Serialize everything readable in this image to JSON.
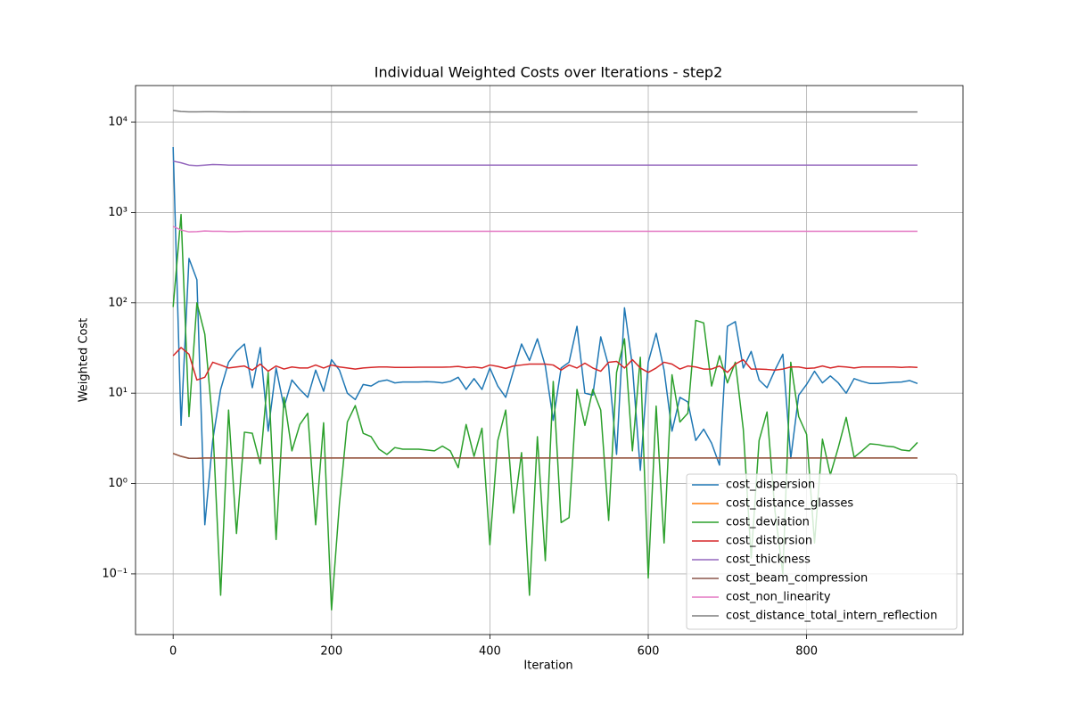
{
  "chart_data": {
    "type": "line",
    "title": "Individual Weighted Costs over Iterations - step2",
    "xlabel": "Iteration",
    "ylabel": "Weighted Cost",
    "log_y": true,
    "grid": true,
    "legend": "lower right",
    "xlim": [
      -47.5,
      997.5
    ],
    "ylim": [
      0.0213,
      25400
    ],
    "xticks": [
      0,
      200,
      400,
      600,
      800
    ],
    "yticks": [
      {
        "value": 0.1,
        "label": "10⁻¹"
      },
      {
        "value": 1,
        "label": "10⁰"
      },
      {
        "value": 10,
        "label": "10¹"
      },
      {
        "value": 100,
        "label": "10²"
      },
      {
        "value": 1000,
        "label": "10³"
      },
      {
        "value": 10000,
        "label": "10⁴"
      }
    ],
    "x": [
      0,
      10,
      20,
      30,
      40,
      50,
      60,
      70,
      80,
      90,
      100,
      110,
      120,
      130,
      140,
      150,
      160,
      170,
      180,
      190,
      200,
      210,
      220,
      230,
      240,
      250,
      260,
      270,
      280,
      290,
      300,
      310,
      320,
      330,
      340,
      350,
      360,
      370,
      380,
      390,
      400,
      410,
      420,
      430,
      440,
      450,
      460,
      470,
      480,
      490,
      500,
      510,
      520,
      530,
      540,
      550,
      560,
      570,
      580,
      590,
      600,
      610,
      620,
      630,
      640,
      650,
      660,
      670,
      680,
      690,
      700,
      710,
      720,
      730,
      740,
      750,
      760,
      770,
      780,
      790,
      800,
      810,
      820,
      830,
      840,
      850,
      860,
      870,
      880,
      890,
      900,
      910,
      920,
      930,
      940
    ],
    "series": [
      {
        "name": "cost_dispersion",
        "color": "#1f77b4",
        "values": [
          5300,
          4.4,
          310,
          180,
          0.35,
          3,
          11,
          22,
          29,
          35,
          11.5,
          32,
          3.8,
          19,
          7,
          14,
          11,
          9,
          18,
          10.5,
          23.5,
          18,
          10,
          8.5,
          12.5,
          12,
          13.5,
          14,
          13,
          13.3,
          13.3,
          13.3,
          13.4,
          13.3,
          13,
          13.5,
          15,
          11,
          14.5,
          11,
          19,
          12,
          9,
          18,
          35,
          23,
          40,
          20,
          5,
          19,
          22,
          55,
          10,
          9.5,
          42,
          20,
          2.1,
          88,
          20,
          1.4,
          22,
          46,
          18,
          3.8,
          9,
          8,
          3,
          4,
          2.8,
          1.6,
          55,
          62,
          19,
          29,
          14,
          11.5,
          18,
          27,
          1.9,
          9.5,
          12.5,
          17.5,
          13,
          15.5,
          13,
          10,
          14.5,
          13.5,
          12.8,
          12.8,
          13,
          13.2,
          13.3,
          13.8,
          12.8
        ]
      },
      {
        "name": "cost_distance_glasses",
        "color": "#ff7f0e",
        "values": [
          2.15,
          2.0,
          1.9,
          1.9,
          1.92,
          1.92,
          1.92,
          1.92,
          1.92,
          1.92,
          1.92,
          1.92,
          1.92,
          1.92,
          1.92,
          1.92,
          1.92,
          1.92,
          1.92,
          1.92,
          1.92,
          1.92,
          1.92,
          1.92,
          1.92,
          1.92,
          1.92,
          1.92,
          1.92,
          1.92,
          1.92,
          1.92,
          1.92,
          1.92,
          1.92,
          1.92,
          1.92,
          1.92,
          1.92,
          1.92,
          1.92,
          1.92,
          1.92,
          1.92,
          1.92,
          1.92,
          1.92,
          1.92,
          1.92,
          1.92,
          1.92,
          1.92,
          1.92,
          1.92,
          1.92,
          1.92,
          1.92,
          1.92,
          1.92,
          1.92,
          1.92,
          1.92,
          1.92,
          1.92,
          1.92,
          1.92,
          1.92,
          1.92,
          1.92,
          1.92,
          1.92,
          1.92,
          1.92,
          1.92,
          1.92,
          1.92,
          1.92,
          1.92,
          1.92,
          1.92,
          1.92,
          1.92,
          1.92,
          1.92,
          1.92,
          1.92,
          1.92,
          1.92,
          1.92,
          1.92,
          1.92,
          1.92,
          1.92,
          1.92,
          1.92
        ]
      },
      {
        "name": "cost_deviation",
        "color": "#2ca02c",
        "values": [
          90,
          950,
          5.5,
          100,
          45,
          4.5,
          0.058,
          6.5,
          0.28,
          3.7,
          3.6,
          1.65,
          17,
          0.24,
          9,
          2.3,
          4.5,
          6,
          0.35,
          4.7,
          0.04,
          0.6,
          4.8,
          7.3,
          3.6,
          3.3,
          2.4,
          2.1,
          2.5,
          2.4,
          2.4,
          2.4,
          2.35,
          2.3,
          2.6,
          2.3,
          1.5,
          4.5,
          2,
          4.1,
          0.21,
          3,
          6.5,
          0.47,
          2.2,
          0.058,
          3.3,
          0.14,
          13.5,
          0.37,
          0.42,
          11,
          4.4,
          11,
          6.5,
          0.39,
          17,
          40,
          2.3,
          25,
          0.09,
          7.2,
          0.22,
          16,
          4.8,
          6,
          64,
          60,
          12,
          26,
          13,
          22,
          4,
          0.15,
          3,
          6.2,
          0.5,
          0.1,
          22,
          5.5,
          3.5,
          0.22,
          3.1,
          1.25,
          2.5,
          5.4,
          1.95,
          2.3,
          2.75,
          2.7,
          2.6,
          2.55,
          2.35,
          2.3,
          2.85
        ]
      },
      {
        "name": "cost_distorsion",
        "color": "#d62728",
        "values": [
          26,
          32,
          27,
          14,
          15,
          22,
          20.5,
          19,
          19.5,
          20,
          18,
          21,
          17.5,
          20,
          18.5,
          19.5,
          19,
          19,
          20.5,
          19,
          20.5,
          19.5,
          19,
          18.5,
          19,
          19.3,
          19.5,
          19.5,
          19.3,
          19.3,
          19.3,
          19.4,
          19.4,
          19.4,
          19.4,
          19.5,
          19.8,
          19.2,
          19.5,
          19,
          20.5,
          19.8,
          18.8,
          20,
          20.5,
          21,
          21,
          21,
          20.5,
          18,
          20.5,
          19,
          21.5,
          19,
          17.5,
          22,
          22.5,
          19,
          23.5,
          19,
          17,
          19,
          22,
          21,
          18.5,
          20,
          19.5,
          18.5,
          18.5,
          20,
          17,
          21,
          23.5,
          18.5,
          18.5,
          18.3,
          18,
          18.5,
          19.5,
          19.5,
          18.8,
          19,
          20,
          19,
          19.8,
          19.5,
          19,
          19.5,
          19.5,
          19.5,
          19.5,
          19.5,
          19.3,
          19.5,
          19.3
        ]
      },
      {
        "name": "cost_thickness",
        "color": "#9467bd",
        "values": [
          3700,
          3550,
          3350,
          3300,
          3350,
          3400,
          3380,
          3350,
          3350,
          3350,
          3350,
          3350,
          3350,
          3350,
          3350,
          3350,
          3350,
          3350,
          3350,
          3350,
          3350,
          3350,
          3350,
          3350,
          3350,
          3350,
          3350,
          3350,
          3350,
          3350,
          3350,
          3350,
          3350,
          3350,
          3350,
          3350,
          3350,
          3350,
          3350,
          3350,
          3350,
          3350,
          3350,
          3350,
          3350,
          3350,
          3350,
          3350,
          3350,
          3350,
          3350,
          3350,
          3350,
          3350,
          3350,
          3350,
          3350,
          3350,
          3350,
          3350,
          3350,
          3350,
          3350,
          3350,
          3350,
          3350,
          3350,
          3350,
          3350,
          3350,
          3350,
          3350,
          3350,
          3350,
          3350,
          3350,
          3350,
          3350,
          3350,
          3350,
          3350,
          3350,
          3350,
          3350,
          3350,
          3350,
          3350,
          3350,
          3350,
          3350,
          3350,
          3350,
          3350,
          3350,
          3350
        ]
      },
      {
        "name": "cost_beam_compression",
        "color": "#8c564b",
        "values": [
          2.15,
          2.0,
          1.9,
          1.9,
          1.92,
          1.92,
          1.92,
          1.92,
          1.92,
          1.92,
          1.92,
          1.92,
          1.92,
          1.92,
          1.92,
          1.92,
          1.92,
          1.92,
          1.92,
          1.92,
          1.92,
          1.92,
          1.92,
          1.92,
          1.92,
          1.92,
          1.92,
          1.92,
          1.92,
          1.92,
          1.92,
          1.92,
          1.92,
          1.92,
          1.92,
          1.92,
          1.92,
          1.92,
          1.92,
          1.92,
          1.92,
          1.92,
          1.92,
          1.92,
          1.92,
          1.92,
          1.92,
          1.92,
          1.92,
          1.92,
          1.92,
          1.92,
          1.92,
          1.92,
          1.92,
          1.92,
          1.92,
          1.92,
          1.92,
          1.92,
          1.92,
          1.92,
          1.92,
          1.92,
          1.92,
          1.92,
          1.92,
          1.92,
          1.92,
          1.92,
          1.92,
          1.92,
          1.92,
          1.92,
          1.92,
          1.92,
          1.92,
          1.92,
          1.92,
          1.92,
          1.92,
          1.92,
          1.92,
          1.92,
          1.92,
          1.92,
          1.92,
          1.92,
          1.92,
          1.92,
          1.92,
          1.92,
          1.92,
          1.92,
          1.92
        ]
      },
      {
        "name": "cost_non_linearity",
        "color": "#e377c2",
        "values": [
          700,
          640,
          610,
          615,
          625,
          620,
          620,
          615,
          615,
          620,
          620,
          620,
          620,
          620,
          620,
          620,
          620,
          620,
          620,
          620,
          620,
          620,
          620,
          620,
          620,
          620,
          620,
          620,
          620,
          620,
          620,
          620,
          620,
          620,
          620,
          620,
          620,
          620,
          620,
          620,
          620,
          620,
          620,
          620,
          620,
          620,
          620,
          620,
          620,
          620,
          620,
          620,
          620,
          620,
          620,
          620,
          620,
          620,
          620,
          620,
          620,
          620,
          620,
          620,
          620,
          620,
          620,
          620,
          620,
          620,
          620,
          620,
          620,
          620,
          620,
          620,
          620,
          620,
          620,
          620,
          620,
          620,
          620,
          620,
          620,
          620,
          620,
          620,
          620,
          620,
          620,
          620,
          620,
          620,
          620
        ]
      },
      {
        "name": "cost_distance_total_intern_reflection",
        "color": "#7f7f7f",
        "values": [
          13500,
          13100,
          13000,
          13000,
          13050,
          13050,
          13000,
          12950,
          12950,
          13000,
          12950,
          12950,
          12950,
          12950,
          12950,
          12950,
          12950,
          12950,
          12950,
          12950,
          12950,
          12950,
          12950,
          12950,
          12950,
          12950,
          12950,
          12950,
          12950,
          12950,
          12950,
          12950,
          12950,
          12950,
          12950,
          12950,
          12950,
          12950,
          12950,
          12950,
          12950,
          12950,
          12950,
          12950,
          12950,
          12950,
          12950,
          12950,
          12950,
          12950,
          12950,
          12950,
          12950,
          12950,
          12950,
          12950,
          12950,
          12950,
          12950,
          12950,
          12950,
          12950,
          12950,
          12950,
          12950,
          12950,
          12950,
          12950,
          12950,
          12950,
          12950,
          12950,
          12950,
          12950,
          12950,
          12950,
          12950,
          12950,
          12950,
          12950,
          12950,
          12950,
          12950,
          12950,
          12950,
          12950,
          12950,
          12950,
          12950,
          12950,
          12950,
          12950,
          12950,
          12950,
          12950
        ]
      }
    ]
  }
}
